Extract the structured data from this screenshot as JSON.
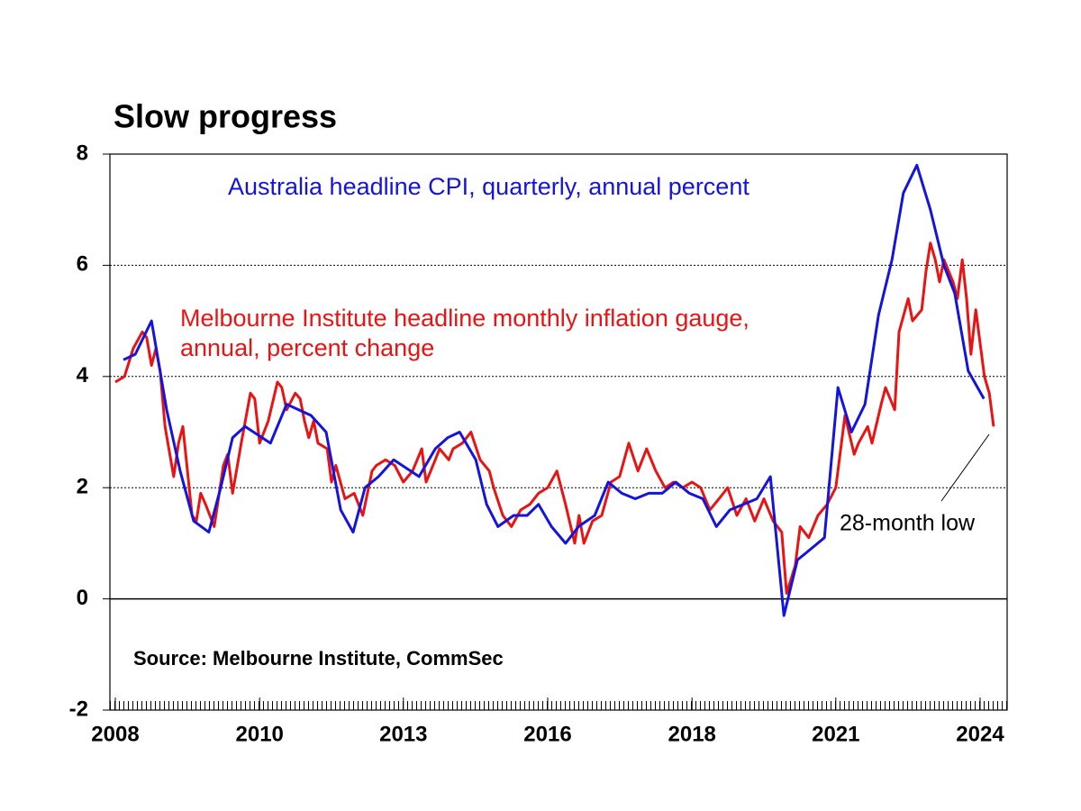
{
  "chart_data": {
    "type": "line",
    "title": "Slow progress",
    "source": "Source: Melbourne Institute, CommSec",
    "annotation": "28-month low",
    "xlim": [
      2007.9,
      2024.5
    ],
    "xticks": [
      {
        "value": 2008,
        "label": "2008"
      },
      {
        "value": 2010.67,
        "label": "2010"
      },
      {
        "value": 2013.33,
        "label": "2013"
      },
      {
        "value": 2016,
        "label": "2016"
      },
      {
        "value": 2018.67,
        "label": "2018"
      },
      {
        "value": 2021.33,
        "label": "2021"
      },
      {
        "value": 2024,
        "label": "2024"
      }
    ],
    "ylim": [
      -2,
      8
    ],
    "yticks": [
      -2,
      0,
      2,
      4,
      6,
      8
    ],
    "grid": true,
    "series": [
      {
        "name": "Melbourne Institute headline monthly inflation gauge, annual, percent change",
        "color": "#e81414",
        "x": [
          2008.0,
          2008.17,
          2008.33,
          2008.5,
          2008.58,
          2008.67,
          2008.75,
          2008.83,
          2008.92,
          2009.08,
          2009.17,
          2009.25,
          2009.42,
          2009.5,
          2009.58,
          2009.67,
          2009.83,
          2010.0,
          2010.08,
          2010.17,
          2010.33,
          2010.5,
          2010.58,
          2010.67,
          2010.83,
          2011.0,
          2011.08,
          2011.17,
          2011.33,
          2011.42,
          2011.5,
          2011.58,
          2011.67,
          2011.75,
          2011.92,
          2012.0,
          2012.08,
          2012.25,
          2012.42,
          2012.58,
          2012.75,
          2012.83,
          2013.0,
          2013.17,
          2013.33,
          2013.5,
          2013.67,
          2013.75,
          2013.92,
          2014.0,
          2014.17,
          2014.25,
          2014.42,
          2014.58,
          2014.75,
          2014.92,
          2015.0,
          2015.17,
          2015.33,
          2015.5,
          2015.67,
          2015.83,
          2016.0,
          2016.17,
          2016.33,
          2016.5,
          2016.58,
          2016.67,
          2016.83,
          2017.0,
          2017.17,
          2017.33,
          2017.5,
          2017.67,
          2017.83,
          2018.0,
          2018.17,
          2018.33,
          2018.5,
          2018.67,
          2018.83,
          2019.0,
          2019.17,
          2019.33,
          2019.5,
          2019.67,
          2019.83,
          2020.0,
          2020.17,
          2020.33,
          2020.42,
          2020.58,
          2020.67,
          2020.83,
          2021.0,
          2021.17,
          2021.33,
          2021.5,
          2021.67,
          2021.75,
          2021.92,
          2022.0,
          2022.17,
          2022.25,
          2022.42,
          2022.5,
          2022.67,
          2022.75,
          2022.92,
          2023.0,
          2023.08,
          2023.17,
          2023.25,
          2023.33,
          2023.5,
          2023.58,
          2023.67,
          2023.75,
          2023.83,
          2023.92,
          2024.0,
          2024.08,
          2024.17,
          2024.25
        ],
        "values": [
          3.9,
          4.0,
          4.5,
          4.8,
          4.7,
          4.2,
          4.5,
          4.1,
          3.1,
          2.2,
          2.8,
          3.1,
          1.5,
          1.4,
          1.9,
          1.7,
          1.3,
          2.4,
          2.6,
          1.9,
          2.8,
          3.7,
          3.6,
          2.8,
          3.2,
          3.9,
          3.8,
          3.4,
          3.7,
          3.6,
          3.2,
          2.9,
          3.2,
          2.8,
          2.7,
          2.1,
          2.4,
          1.8,
          1.9,
          1.5,
          2.3,
          2.4,
          2.5,
          2.4,
          2.1,
          2.3,
          2.7,
          2.1,
          2.5,
          2.7,
          2.5,
          2.7,
          2.8,
          3.0,
          2.5,
          2.3,
          2.0,
          1.5,
          1.3,
          1.6,
          1.7,
          1.9,
          2.0,
          2.3,
          1.7,
          1.0,
          1.5,
          1.0,
          1.4,
          1.5,
          2.1,
          2.2,
          2.8,
          2.3,
          2.7,
          2.3,
          2.0,
          2.1,
          2.0,
          2.1,
          2.0,
          1.6,
          1.8,
          2.0,
          1.5,
          1.8,
          1.4,
          1.8,
          1.4,
          1.2,
          0.1,
          0.6,
          1.3,
          1.1,
          1.5,
          1.7,
          2.0,
          3.3,
          2.6,
          2.8,
          3.1,
          2.8,
          3.5,
          3.8,
          3.4,
          4.8,
          5.4,
          5.0,
          5.2,
          5.9,
          6.4,
          6.1,
          5.7,
          6.1,
          5.7,
          5.4,
          6.1,
          5.4,
          4.4,
          5.2,
          4.6,
          4.0,
          3.7,
          3.1
        ]
      },
      {
        "name": "Australia headline CPI, quarterly, annual percent",
        "color": "#1414dc",
        "x": [
          2008.15,
          2008.37,
          2008.67,
          2008.95,
          2009.2,
          2009.45,
          2009.73,
          2009.95,
          2010.17,
          2010.4,
          2010.87,
          2011.17,
          2011.62,
          2011.9,
          2012.17,
          2012.4,
          2012.62,
          2012.87,
          2013.15,
          2013.62,
          2013.92,
          2014.15,
          2014.37,
          2014.67,
          2014.87,
          2015.08,
          2015.37,
          2015.62,
          2015.83,
          2016.07,
          2016.33,
          2016.57,
          2016.87,
          2017.12,
          2017.37,
          2017.62,
          2017.87,
          2018.12,
          2018.37,
          2018.62,
          2018.87,
          2019.12,
          2019.37,
          2019.62,
          2019.87,
          2020.12,
          2020.37,
          2020.62,
          2020.87,
          2021.12,
          2021.37,
          2021.62,
          2021.87,
          2022.12,
          2022.37,
          2022.58,
          2022.83,
          2023.08,
          2023.33,
          2023.53,
          2023.78,
          2024.07
        ],
        "values": [
          4.3,
          4.4,
          5.0,
          3.4,
          2.3,
          1.4,
          1.2,
          2.0,
          2.9,
          3.1,
          2.8,
          3.5,
          3.3,
          3.0,
          1.6,
          1.2,
          2.0,
          2.2,
          2.5,
          2.2,
          2.7,
          2.9,
          3.0,
          2.5,
          1.7,
          1.3,
          1.5,
          1.5,
          1.7,
          1.3,
          1.0,
          1.3,
          1.5,
          2.1,
          1.9,
          1.8,
          1.9,
          1.9,
          2.1,
          1.9,
          1.8,
          1.3,
          1.6,
          1.7,
          1.8,
          2.2,
          -0.3,
          0.7,
          0.9,
          1.1,
          3.8,
          3.0,
          3.5,
          5.1,
          6.1,
          7.3,
          7.8,
          7.0,
          6.0,
          5.5,
          4.1,
          3.6
        ]
      }
    ]
  }
}
